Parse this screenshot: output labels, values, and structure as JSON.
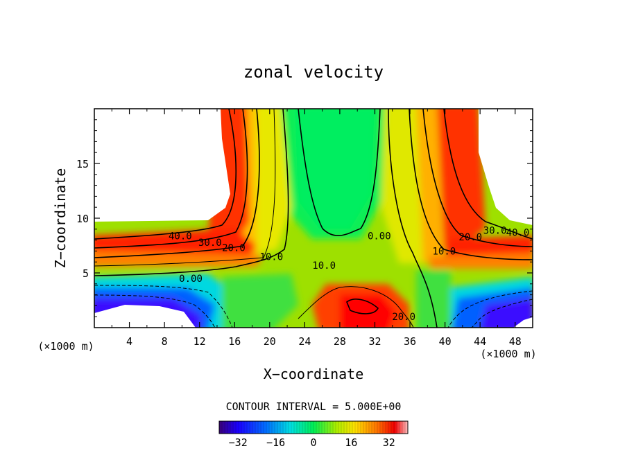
{
  "chart_data": {
    "type": "contour",
    "title": "zonal velocity",
    "xlabel": "X−coordinate",
    "ylabel": "Z−coordinate",
    "x_unit_left": "(×1000 m)",
    "x_unit_right": "(×1000 m)",
    "xlim": [
      0,
      50
    ],
    "ylim": [
      0,
      20
    ],
    "x_ticks": [
      4,
      8,
      12,
      16,
      20,
      24,
      28,
      32,
      36,
      40,
      44,
      48
    ],
    "y_ticks": [
      5,
      10,
      15
    ],
    "contour_interval_text": "CONTOUR INTERVAL = 5.000E+00",
    "colorbar": {
      "range": [
        -40,
        40
      ],
      "ticks": [
        -32,
        -16,
        0,
        16,
        32
      ],
      "tick_labels": [
        "−32",
        "−16",
        "0",
        "16",
        "32"
      ]
    },
    "contour_labels": [
      {
        "text": "40.0",
        "x": 9.8,
        "y": 8.4
      },
      {
        "text": "30.0",
        "x": 13.2,
        "y": 7.8
      },
      {
        "text": "20.0",
        "x": 15.9,
        "y": 7.3
      },
      {
        "text": "10.0",
        "x": 20.2,
        "y": 6.5
      },
      {
        "text": "0.00",
        "x": 11.0,
        "y": 4.5
      },
      {
        "text": "10.0",
        "x": 26.2,
        "y": 5.7
      },
      {
        "text": "0.00",
        "x": 32.5,
        "y": 8.4
      },
      {
        "text": "10.0",
        "x": 39.9,
        "y": 7.0
      },
      {
        "text": "20.0",
        "x": 42.9,
        "y": 8.3
      },
      {
        "text": "30.0",
        "x": 45.7,
        "y": 8.9
      },
      {
        "text": "40.0",
        "x": 48.3,
        "y": 8.7
      },
      {
        "text": "20.0",
        "x": 35.3,
        "y": 1.0
      }
    ]
  }
}
